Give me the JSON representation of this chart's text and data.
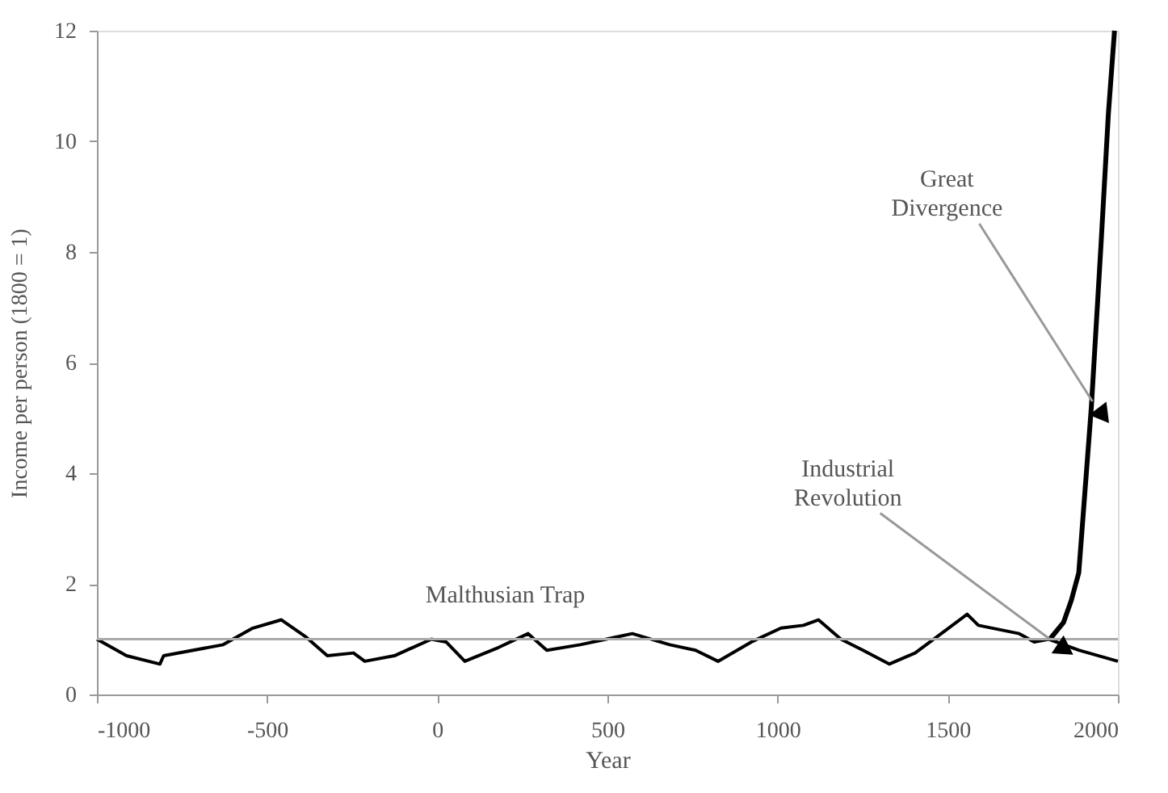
{
  "chart_data": {
    "type": "line",
    "xlabel": "Year",
    "ylabel": "Income per person (1800 = 1)",
    "xlim": [
      -1000,
      2000
    ],
    "xticks": [
      -1000,
      -500,
      0,
      500,
      1000,
      1500,
      2000
    ],
    "ylim": [
      0,
      12
    ],
    "yticks": [
      0,
      2,
      4,
      6,
      8,
      10,
      12
    ],
    "grid": false,
    "marker": "none",
    "line_style": "solid",
    "series": [
      {
        "color": "#000000",
        "x": [
          -1000,
          -913,
          -815,
          -804,
          -629,
          -542,
          -458,
          -388,
          -323,
          -246,
          -213,
          -126,
          -17,
          26,
          81,
          180,
          267,
          322,
          420,
          497,
          573,
          683,
          759,
          825,
          923,
          1010,
          1076,
          1120,
          1186,
          1251,
          1328,
          1404,
          1492,
          1557,
          1590,
          1710,
          1754,
          1797,
          1885,
          2000
        ],
        "values": [
          1.0,
          0.7,
          0.55,
          0.7,
          0.9,
          1.2,
          1.35,
          1.05,
          0.7,
          0.75,
          0.6,
          0.7,
          1.0,
          0.95,
          0.6,
          0.85,
          1.1,
          0.8,
          0.9,
          1.0,
          1.1,
          0.9,
          0.8,
          0.6,
          0.95,
          1.2,
          1.25,
          1.35,
          1.0,
          0.8,
          0.55,
          0.75,
          1.15,
          1.45,
          1.25,
          1.1,
          0.95,
          1.0,
          0.8,
          0.6
        ]
      },
      {
        "color": "#000000",
        "x": [
          1800,
          1840,
          1863,
          1885,
          1922,
          1950,
          1972,
          1990
        ],
        "values": [
          1.0,
          1.3,
          1.7,
          2.2,
          5.2,
          8.1,
          10.5,
          12.0
        ]
      }
    ],
    "ref_lines": [
      {
        "axis": "y",
        "value": 1,
        "label": "Malthusian Trap",
        "color": "#aaaaaa"
      }
    ],
    "annotations": [
      {
        "text": "Industrial Revolution",
        "x": 1800,
        "y": 1.0
      },
      {
        "text": "Great Divergence",
        "x": 1925,
        "y": 5.3
      }
    ]
  }
}
